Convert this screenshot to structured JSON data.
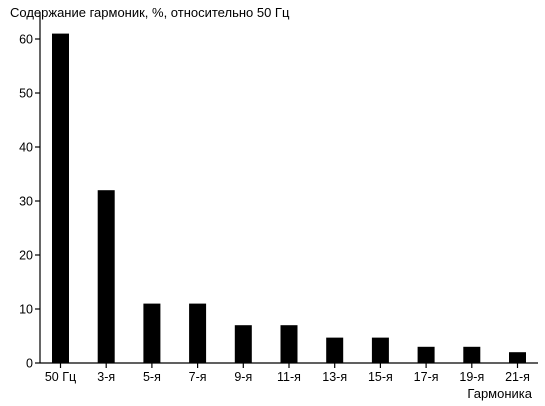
{
  "chart_data": {
    "type": "bar",
    "title": "Содержание гармоник, %, относительно 50 Гц",
    "xlabel": "Гармоника",
    "ylabel": "",
    "categories": [
      "50 Гц",
      "3-я",
      "5-я",
      "7-я",
      "9-я",
      "11-я",
      "13-я",
      "15-я",
      "17-я",
      "19-я",
      "21-я"
    ],
    "values": [
      61,
      32,
      11,
      11,
      7,
      7,
      4.7,
      4.7,
      3,
      3,
      2
    ],
    "ylim": [
      0,
      65
    ],
    "yticks": [
      0,
      10,
      20,
      30,
      40,
      50,
      60
    ],
    "grid": false,
    "legend": "none",
    "bar_color": "#000000"
  }
}
